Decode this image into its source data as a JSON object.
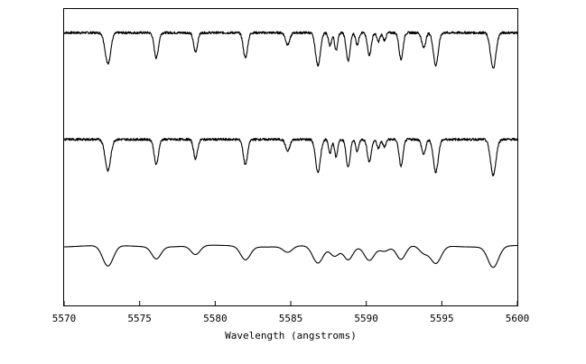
{
  "chart_data": {
    "type": "line",
    "title": "",
    "xlabel": "Wavelength (angstroms)",
    "ylabel": "",
    "xlim": [
      5570,
      5600
    ],
    "ylim": [
      0,
      1
    ],
    "grid": false,
    "xticks": [
      5570,
      5575,
      5580,
      5585,
      5590,
      5595,
      5600
    ],
    "xtick_labels": [
      "5570",
      "5575",
      "5580",
      "5585",
      "5590",
      "5595",
      "5600"
    ],
    "line_color": "#000000",
    "series": [
      {
        "continuum": 0.92,
        "resolution": "high",
        "absorption_lines": [
          {
            "wavelength": 5572.9,
            "depth": 0.105,
            "width": 0.18
          },
          {
            "wavelength": 5576.1,
            "depth": 0.085,
            "width": 0.14
          },
          {
            "wavelength": 5578.7,
            "depth": 0.065,
            "width": 0.13
          },
          {
            "wavelength": 5582.0,
            "depth": 0.085,
            "width": 0.14
          },
          {
            "wavelength": 5584.8,
            "depth": 0.04,
            "width": 0.14
          },
          {
            "wavelength": 5586.8,
            "depth": 0.11,
            "width": 0.16
          },
          {
            "wavelength": 5587.6,
            "depth": 0.045,
            "width": 0.1
          },
          {
            "wavelength": 5588.0,
            "depth": 0.06,
            "width": 0.1
          },
          {
            "wavelength": 5588.8,
            "depth": 0.095,
            "width": 0.13
          },
          {
            "wavelength": 5589.4,
            "depth": 0.04,
            "width": 0.1
          },
          {
            "wavelength": 5590.2,
            "depth": 0.075,
            "width": 0.13
          },
          {
            "wavelength": 5590.8,
            "depth": 0.03,
            "width": 0.1
          },
          {
            "wavelength": 5591.2,
            "depth": 0.025,
            "width": 0.1
          },
          {
            "wavelength": 5592.3,
            "depth": 0.09,
            "width": 0.13
          },
          {
            "wavelength": 5593.8,
            "depth": 0.05,
            "width": 0.13
          },
          {
            "wavelength": 5594.6,
            "depth": 0.11,
            "width": 0.16
          },
          {
            "wavelength": 5598.4,
            "depth": 0.12,
            "width": 0.18
          }
        ]
      },
      {
        "continuum": 0.56,
        "resolution": "high",
        "absorption_lines": [
          {
            "wavelength": 5572.9,
            "depth": 0.105,
            "width": 0.18
          },
          {
            "wavelength": 5576.1,
            "depth": 0.085,
            "width": 0.14
          },
          {
            "wavelength": 5578.7,
            "depth": 0.065,
            "width": 0.13
          },
          {
            "wavelength": 5582.0,
            "depth": 0.085,
            "width": 0.14
          },
          {
            "wavelength": 5584.8,
            "depth": 0.04,
            "width": 0.14
          },
          {
            "wavelength": 5586.8,
            "depth": 0.11,
            "width": 0.16
          },
          {
            "wavelength": 5587.6,
            "depth": 0.045,
            "width": 0.1
          },
          {
            "wavelength": 5588.0,
            "depth": 0.06,
            "width": 0.1
          },
          {
            "wavelength": 5588.8,
            "depth": 0.095,
            "width": 0.13
          },
          {
            "wavelength": 5589.4,
            "depth": 0.04,
            "width": 0.1
          },
          {
            "wavelength": 5590.2,
            "depth": 0.075,
            "width": 0.13
          },
          {
            "wavelength": 5590.8,
            "depth": 0.03,
            "width": 0.1
          },
          {
            "wavelength": 5591.2,
            "depth": 0.025,
            "width": 0.1
          },
          {
            "wavelength": 5592.3,
            "depth": 0.09,
            "width": 0.13
          },
          {
            "wavelength": 5593.8,
            "depth": 0.05,
            "width": 0.13
          },
          {
            "wavelength": 5594.6,
            "depth": 0.11,
            "width": 0.16
          },
          {
            "wavelength": 5598.4,
            "depth": 0.12,
            "width": 0.18
          }
        ]
      },
      {
        "continuum": 0.2,
        "resolution": "low",
        "absorption_lines": [
          {
            "wavelength": 5572.9,
            "depth": 0.07,
            "width": 0.35
          },
          {
            "wavelength": 5576.1,
            "depth": 0.04,
            "width": 0.3
          },
          {
            "wavelength": 5578.7,
            "depth": 0.03,
            "width": 0.3
          },
          {
            "wavelength": 5582.0,
            "depth": 0.045,
            "width": 0.32
          },
          {
            "wavelength": 5584.8,
            "depth": 0.02,
            "width": 0.3
          },
          {
            "wavelength": 5586.8,
            "depth": 0.06,
            "width": 0.35
          },
          {
            "wavelength": 5587.9,
            "depth": 0.035,
            "width": 0.3
          },
          {
            "wavelength": 5588.8,
            "depth": 0.045,
            "width": 0.3
          },
          {
            "wavelength": 5590.2,
            "depth": 0.045,
            "width": 0.32
          },
          {
            "wavelength": 5591.2,
            "depth": 0.015,
            "width": 0.3
          },
          {
            "wavelength": 5592.3,
            "depth": 0.045,
            "width": 0.3
          },
          {
            "wavelength": 5593.8,
            "depth": 0.025,
            "width": 0.3
          },
          {
            "wavelength": 5594.6,
            "depth": 0.06,
            "width": 0.35
          },
          {
            "wavelength": 5598.4,
            "depth": 0.07,
            "width": 0.35
          }
        ]
      }
    ]
  }
}
